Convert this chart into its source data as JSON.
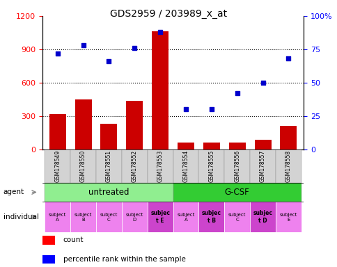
{
  "title": "GDS2959 / 203989_x_at",
  "samples": [
    "GSM178549",
    "GSM178550",
    "GSM178551",
    "GSM178552",
    "GSM178553",
    "GSM178554",
    "GSM178555",
    "GSM178556",
    "GSM178557",
    "GSM178558"
  ],
  "counts": [
    320,
    450,
    230,
    440,
    1060,
    60,
    65,
    60,
    90,
    210
  ],
  "percentile_ranks": [
    72,
    78,
    66,
    76,
    88,
    30,
    30,
    42,
    50,
    68
  ],
  "ylim_left": [
    0,
    1200
  ],
  "ylim_right": [
    0,
    100
  ],
  "yticks_left": [
    0,
    300,
    600,
    900,
    1200
  ],
  "yticks_right": [
    0,
    25,
    50,
    75,
    100
  ],
  "bar_color": "#cc0000",
  "scatter_color": "#0000cc",
  "agent_untreated_color": "#90ee90",
  "agent_gcsf_color": "#33cc33",
  "individual_normal_color": "#ee82ee",
  "individual_bold_color": "#cc44cc",
  "tick_label_bg": "#d3d3d3",
  "individuals": [
    "subject\nA",
    "subject\nB",
    "subject\nC",
    "subject\nD",
    "subjec\nt E",
    "subject\nA",
    "subjec\nt B",
    "subject\nC",
    "subjec\nt D",
    "subject\nE"
  ],
  "individual_bold": [
    false,
    false,
    false,
    false,
    true,
    false,
    true,
    false,
    true,
    false
  ]
}
